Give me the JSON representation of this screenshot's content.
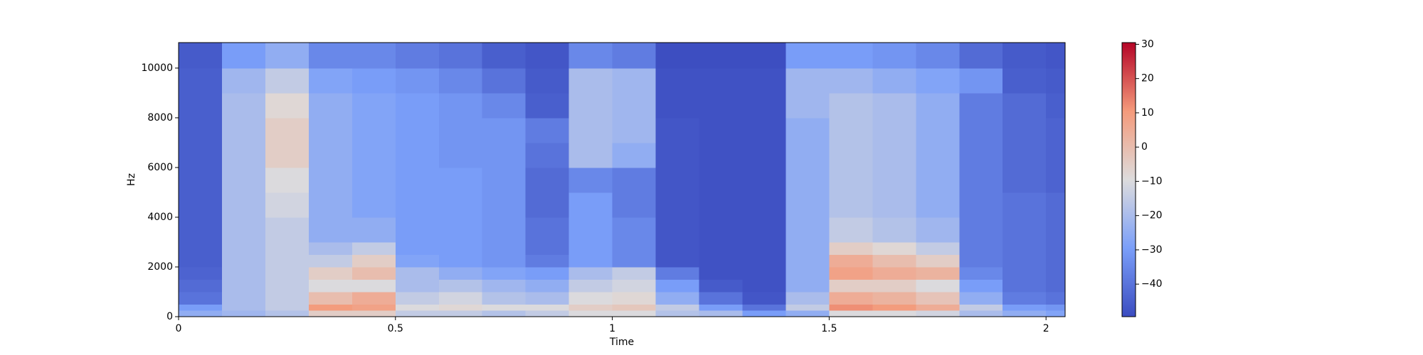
{
  "chart_data": {
    "type": "heatmap",
    "x_label": "Time",
    "y_label": "Hz",
    "x_bins": [
      0,
      0.1,
      0.2,
      0.3,
      0.4,
      0.5,
      0.6,
      0.7,
      0.8,
      0.9,
      1.0,
      1.1,
      1.2,
      1.3,
      1.4,
      1.5,
      1.6,
      1.7,
      1.8,
      1.9,
      2.0,
      2.044
    ],
    "y_bins": [
      0,
      250,
      500,
      1000,
      1500,
      2000,
      2500,
      3000,
      4000,
      5000,
      6000,
      7000,
      8000,
      9000,
      10000,
      11025
    ],
    "values": [
      [
        -25,
        -22,
        -18,
        -5,
        -5,
        -15,
        -15,
        -18,
        -15,
        -10,
        -10,
        -18,
        -20,
        -30,
        -25,
        -10,
        -10,
        -12,
        -20,
        -25,
        -28
      ],
      [
        -30,
        -20,
        -15,
        10,
        8,
        -10,
        -8,
        -10,
        -10,
        -5,
        -3,
        -15,
        -30,
        -40,
        -15,
        12,
        10,
        5,
        -15,
        -30,
        -32
      ],
      [
        -40,
        -20,
        -15,
        0,
        5,
        -15,
        -12,
        -18,
        -20,
        -10,
        -8,
        -25,
        -40,
        -47,
        -20,
        5,
        3,
        -2,
        -25,
        -38,
        -40
      ],
      [
        -42,
        -20,
        -15,
        -10,
        -10,
        -20,
        -18,
        -22,
        -25,
        -15,
        -12,
        -30,
        -46,
        -48,
        -25,
        -5,
        -5,
        -10,
        -30,
        -40,
        -42
      ],
      [
        -44,
        -20,
        -15,
        -5,
        0,
        -20,
        -25,
        -28,
        -30,
        -20,
        -15,
        -38,
        -48,
        -48,
        -25,
        8,
        5,
        3,
        -35,
        -40,
        -42
      ],
      [
        -45,
        -20,
        -15,
        -15,
        -5,
        -28,
        -30,
        -32,
        -38,
        -30,
        -35,
        -47,
        -48,
        -48,
        -25,
        5,
        0,
        -5,
        -38,
        -40,
        -42
      ],
      [
        -45,
        -20,
        -15,
        -20,
        -15,
        -30,
        -30,
        -32,
        -40,
        -30,
        -35,
        -47,
        -48,
        -48,
        -25,
        -5,
        -8,
        -15,
        -38,
        -40,
        -42
      ],
      [
        -45,
        -20,
        -15,
        -25,
        -25,
        -30,
        -30,
        -32,
        -40,
        -30,
        -35,
        -47,
        -48,
        -48,
        -25,
        -15,
        -18,
        -22,
        -38,
        -40,
        -42
      ],
      [
        -45,
        -20,
        -12,
        -25,
        -28,
        -30,
        -30,
        -32,
        -42,
        -30,
        -38,
        -47,
        -48,
        -48,
        -25,
        -18,
        -20,
        -25,
        -38,
        -40,
        -42
      ],
      [
        -45,
        -20,
        -10,
        -25,
        -28,
        -30,
        -30,
        -32,
        -42,
        -35,
        -38,
        -47,
        -48,
        -48,
        -25,
        -18,
        -20,
        -25,
        -38,
        -42,
        -44
      ],
      [
        -45,
        -20,
        -5,
        -25,
        -28,
        -30,
        -32,
        -32,
        -40,
        -20,
        -25,
        -47,
        -48,
        -48,
        -25,
        -18,
        -20,
        -25,
        -38,
        -42,
        -44
      ],
      [
        -45,
        -20,
        -5,
        -25,
        -28,
        -30,
        -32,
        -32,
        -38,
        -20,
        -22,
        -47,
        -48,
        -48,
        -25,
        -18,
        -20,
        -25,
        -38,
        -42,
        -44
      ],
      [
        -45,
        -20,
        -8,
        -25,
        -28,
        -30,
        -32,
        -35,
        -45,
        -20,
        -22,
        -48,
        -48,
        -48,
        -22,
        -18,
        -20,
        -25,
        -38,
        -42,
        -45
      ],
      [
        -45,
        -22,
        -15,
        -28,
        -30,
        -32,
        -35,
        -40,
        -46,
        -20,
        -22,
        -48,
        -48,
        -48,
        -22,
        -22,
        -25,
        -28,
        -32,
        -45,
        -46
      ],
      [
        -46,
        -30,
        -25,
        -35,
        -35,
        -38,
        -40,
        -45,
        -47,
        -35,
        -38,
        -49,
        -49,
        -49,
        -30,
        -30,
        -32,
        -35,
        -42,
        -46,
        -47
      ]
    ],
    "xlim": [
      0,
      2.044
    ],
    "ylim": [
      0,
      11025
    ],
    "xticks": [
      0,
      0.5,
      1,
      1.5,
      2
    ],
    "yticks": [
      0,
      2000,
      4000,
      6000,
      8000,
      10000
    ],
    "colormap": [
      "#3b4cc0",
      "#7b9ff9",
      "#dddcdc",
      "#f49a7b",
      "#b40426"
    ],
    "clim": [
      -49.5,
      30.5
    ],
    "cticks": [
      {
        "value": -40,
        "label": "−40"
      },
      {
        "value": -30,
        "label": "−30"
      },
      {
        "value": -20,
        "label": "−20"
      },
      {
        "value": -10,
        "label": "−10"
      },
      0,
      10,
      20,
      30
    ]
  }
}
